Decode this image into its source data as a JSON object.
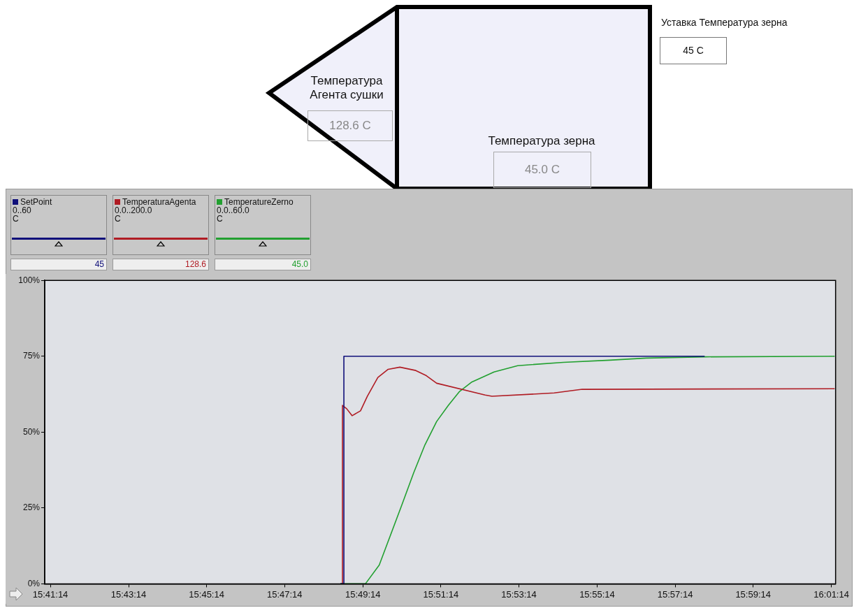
{
  "chart_data": {
    "type": "line",
    "xlim": [
      15.6848,
      16.0224
    ],
    "xticks": [
      {
        "value": 15.6872,
        "label": "15:41:14"
      },
      {
        "value": 15.7206,
        "label": "15:43:14"
      },
      {
        "value": 15.7539,
        "label": "15:45:14"
      },
      {
        "value": 15.7872,
        "label": "15:47:14"
      },
      {
        "value": 15.8206,
        "label": "15:49:14"
      },
      {
        "value": 15.8539,
        "label": "15:51:14"
      },
      {
        "value": 15.8872,
        "label": "15:53:14"
      },
      {
        "value": 15.9206,
        "label": "15:55:14"
      },
      {
        "value": 15.9539,
        "label": "15:57:14"
      },
      {
        "value": 15.9872,
        "label": "15:59:14"
      },
      {
        "value": 16.0206,
        "label": "16:01:14"
      }
    ],
    "ylim": [
      0,
      100
    ],
    "yticks": [
      {
        "value": 0,
        "label": "0%"
      },
      {
        "value": 25,
        "label": "25%"
      },
      {
        "value": 50,
        "label": "50%"
      },
      {
        "value": 75,
        "label": "75%"
      },
      {
        "value": 100,
        "label": "100%"
      }
    ],
    "grid": false,
    "legend": "top left",
    "series": [
      {
        "name": "SetPoint",
        "color": "#10107a",
        "x": [
          15.811,
          15.8125,
          15.8125,
          15.9665
        ],
        "values": [
          0,
          0,
          75,
          75
        ]
      },
      {
        "name": "TemperaturaAgenta",
        "color": "#b01c24",
        "x": [
          15.8119,
          15.8119,
          15.8137,
          15.816,
          15.8196,
          15.8225,
          15.827,
          15.8314,
          15.8364,
          15.8432,
          15.8477,
          15.8521,
          15.8728,
          15.8757,
          15.9023,
          15.9142,
          16.022
        ],
        "values": [
          0,
          58.8,
          57.7,
          55.4,
          57,
          61.8,
          68,
          70.7,
          71.4,
          70.3,
          68.6,
          66.1,
          62.2,
          61.8,
          62.9,
          64.1,
          64.3
        ]
      },
      {
        "name": "TemperatureZerno",
        "color": "#22a030",
        "x": [
          15.811,
          15.8217,
          15.8276,
          15.8373,
          15.8423,
          15.8471,
          15.8521,
          15.8571,
          15.8619,
          15.8669,
          15.8766,
          15.8867,
          15.9062,
          15.926,
          15.9416,
          15.9665,
          16.022
        ],
        "values": [
          0,
          0,
          6.2,
          26.1,
          36.6,
          45.8,
          53.5,
          58.8,
          63.4,
          66.4,
          69.8,
          71.9,
          73.0,
          73.7,
          74.4,
          74.8,
          75
        ]
      }
    ],
    "annotations": [
      "0..60",
      "C",
      "45",
      "0.0..200.0",
      "C",
      "128.6",
      "0.0..60.0",
      "C",
      "45.0",
      "Уставка Температура зерна",
      "45 C",
      "Температура Агента сушки",
      "128.6 C",
      "Температура зерна",
      "45.0 C"
    ]
  }
}
